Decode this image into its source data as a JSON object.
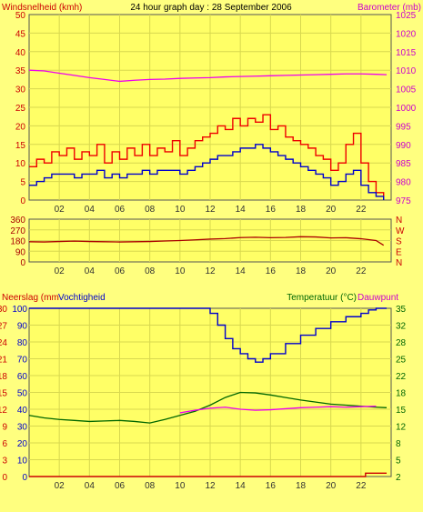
{
  "page": {
    "title": "24 hour graph day : 28 September 2006",
    "background": "#ffff7f",
    "plot_background": "#ffff66",
    "grid_color": "#d8d84f"
  },
  "x_tick_labels": [
    "02",
    "04",
    "06",
    "08",
    "10",
    "12",
    "14",
    "16",
    "18",
    "20",
    "22"
  ],
  "x_tick_hours": [
    2,
    4,
    6,
    8,
    10,
    12,
    14,
    16,
    18,
    20,
    22
  ],
  "chart_data": [
    {
      "type": "line",
      "title": "24 hour graph day : 28 September 2006",
      "xlim": [
        0,
        24
      ],
      "grid": true,
      "left_axis_label": "Windsnelheid (kmh)",
      "left_axis_color": "#cc0000",
      "left_ylim": [
        0,
        50
      ],
      "left_ticks": [
        "0",
        "5",
        "10",
        "15",
        "20",
        "25",
        "30",
        "35",
        "40",
        "45",
        "50"
      ],
      "right_axis_label": "Barometer (mb)",
      "right_axis_color": "#cc00cc",
      "right_ylim": [
        975,
        1025
      ],
      "right_ticks": [
        "975",
        "980",
        "985",
        "990",
        "995",
        "1000",
        "1005",
        "1010",
        "1015",
        "1020",
        "1025"
      ],
      "series": [
        {
          "axis": "left",
          "color": "#ee0000",
          "x": [
            0,
            0.5,
            1,
            1.5,
            2,
            2.5,
            3,
            3.5,
            4,
            4.5,
            5,
            5.5,
            6,
            6.5,
            7,
            7.5,
            8,
            8.5,
            9,
            9.5,
            10,
            10.5,
            11,
            11.5,
            12,
            12.5,
            13,
            13.5,
            14,
            14.5,
            15,
            15.5,
            16,
            16.5,
            17,
            17.5,
            18,
            18.5,
            19,
            19.5,
            20,
            20.5,
            21,
            21.5,
            22,
            22.5,
            23,
            23.5
          ],
          "values": [
            9,
            11,
            10,
            13,
            12,
            14,
            11,
            13,
            12,
            15,
            10,
            13,
            11,
            14,
            12,
            15,
            12,
            14,
            13,
            16,
            12,
            14,
            16,
            17,
            18,
            20,
            19,
            22,
            20,
            22,
            21,
            23,
            19,
            20,
            17,
            16,
            15,
            14,
            12,
            11,
            8,
            10,
            15,
            18,
            10,
            5,
            2,
            1
          ]
        },
        {
          "axis": "left",
          "color": "#0000cc",
          "x": [
            0,
            0.5,
            1,
            1.5,
            2,
            2.5,
            3,
            3.5,
            4,
            4.5,
            5,
            5.5,
            6,
            6.5,
            7,
            7.5,
            8,
            8.5,
            9,
            9.5,
            10,
            10.5,
            11,
            11.5,
            12,
            12.5,
            13,
            13.5,
            14,
            14.5,
            15,
            15.5,
            16,
            16.5,
            17,
            17.5,
            18,
            18.5,
            19,
            19.5,
            20,
            20.5,
            21,
            21.5,
            22,
            22.5,
            23,
            23.5
          ],
          "values": [
            4,
            5,
            6,
            7,
            7,
            7,
            6,
            7,
            7,
            8,
            6,
            7,
            6,
            7,
            7,
            8,
            7,
            8,
            8,
            8,
            7,
            8,
            9,
            10,
            11,
            12,
            12,
            13,
            14,
            14,
            15,
            14,
            13,
            12,
            11,
            10,
            9,
            8,
            7,
            6,
            4,
            5,
            7,
            8,
            4,
            2,
            1,
            0
          ]
        },
        {
          "axis": "right",
          "color": "#ee00ee",
          "x": [
            0,
            1,
            2,
            3,
            4,
            5,
            6,
            7,
            8,
            9,
            10,
            11,
            12,
            13,
            14,
            15,
            16,
            17,
            18,
            19,
            20,
            21,
            22,
            23,
            23.7
          ],
          "values": [
            1010,
            1009.8,
            1009.2,
            1008.6,
            1008,
            1007.5,
            1007,
            1007.3,
            1007.5,
            1007.6,
            1007.8,
            1007.9,
            1008,
            1008.2,
            1008.3,
            1008.4,
            1008.5,
            1008.6,
            1008.7,
            1008.8,
            1008.9,
            1009,
            1009,
            1008.9,
            1008.8
          ]
        }
      ]
    },
    {
      "type": "line",
      "xlim": [
        0,
        24
      ],
      "grid": true,
      "left_ylim": [
        0,
        360
      ],
      "left_ticks": [
        "0",
        "90",
        "180",
        "270",
        "360"
      ],
      "right_ticks": [
        "N",
        "E",
        "S",
        "W",
        "N"
      ],
      "right_axis_color": "#cc0000",
      "series": [
        {
          "color": "#aa0000",
          "x": [
            0,
            1,
            2,
            3,
            4,
            5,
            6,
            7,
            8,
            9,
            10,
            11,
            12,
            13,
            14,
            15,
            16,
            17,
            18,
            19,
            20,
            21,
            22,
            23,
            23.5
          ],
          "values": [
            170,
            168,
            172,
            175,
            172,
            170,
            168,
            170,
            172,
            176,
            180,
            186,
            192,
            196,
            205,
            208,
            204,
            206,
            212,
            210,
            202,
            204,
            195,
            180,
            140
          ]
        }
      ]
    },
    {
      "type": "line",
      "xlim": [
        0,
        24
      ],
      "grid": true,
      "left_axis_labels": [
        "Neerslag (mm",
        "Vochtigheid"
      ],
      "left_axis_colors": [
        "#cc0000",
        "#0000cc"
      ],
      "left_ylim": [
        0,
        100
      ],
      "left_ticks_rain": [
        "0",
        "3",
        "6",
        "9",
        "12",
        "15",
        "18",
        "21",
        "24",
        "27",
        "30"
      ],
      "left_ticks_humidity": [
        "0",
        "10",
        "20",
        "30",
        "40",
        "50",
        "60",
        "70",
        "80",
        "90",
        "100"
      ],
      "right_axis_labels": [
        "Temperatuur (°C)",
        "Dauwpunt"
      ],
      "right_axis_colors": [
        "#006600",
        "#cc00cc"
      ],
      "right_ylim": [
        2,
        35
      ],
      "right_ticks": [
        "2",
        "5",
        "8",
        "12",
        "15",
        "18",
        "22",
        "25",
        "28",
        "32",
        "35"
      ],
      "series": [
        {
          "axis": "left",
          "color": "#0000cc",
          "x": [
            0,
            11,
            12,
            12.5,
            13,
            13.5,
            14,
            14.5,
            15,
            15.5,
            16,
            17,
            18,
            19,
            20,
            21,
            22,
            22.5,
            23,
            23.7
          ],
          "values": [
            100,
            100,
            97,
            90,
            82,
            76,
            73,
            70,
            68,
            70,
            73,
            79,
            84,
            88,
            92,
            95,
            97,
            99,
            100,
            100
          ]
        },
        {
          "axis": "right",
          "color": "#006600",
          "x": [
            0,
            1,
            2,
            3,
            4,
            5,
            6,
            7,
            8,
            9,
            10,
            11,
            12,
            13,
            14,
            15,
            16,
            17,
            18,
            19,
            20,
            21,
            22,
            23,
            23.7
          ],
          "values": [
            14,
            13.5,
            13.2,
            13,
            12.8,
            12.9,
            13,
            12.8,
            12.5,
            13.2,
            14,
            14.8,
            16,
            17.5,
            18.5,
            18.4,
            18,
            17.5,
            17,
            16.6,
            16.2,
            16,
            15.8,
            15.6,
            15.5
          ]
        },
        {
          "axis": "right",
          "color": "#ee00ee",
          "x": [
            10,
            11,
            12,
            13,
            14,
            15,
            16,
            17,
            18,
            19,
            20,
            21,
            22,
            23
          ],
          "values": [
            14.5,
            15,
            15.4,
            15.6,
            15.2,
            15,
            15.1,
            15.3,
            15.5,
            15.6,
            15.7,
            15.6,
            15.7,
            15.8
          ]
        },
        {
          "axis": "left",
          "color": "#cc0000",
          "x": [
            0,
            22,
            22.3,
            23.7
          ],
          "values": [
            0,
            0,
            0.6,
            0.6
          ]
        }
      ]
    }
  ]
}
